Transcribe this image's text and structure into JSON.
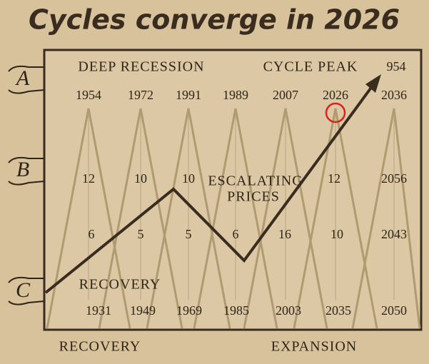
{
  "header": {
    "title": "Cycles converge in 2026"
  },
  "side_labels": [
    "A",
    "B",
    "C"
  ],
  "top_labels": {
    "left": "DEEP RECESSION",
    "right": "CYCLE PEAK",
    "corner": "954"
  },
  "rows": {
    "top_years": [
      "1954",
      "1972",
      "1991",
      "1989",
      "2007",
      "2026",
      "2036"
    ],
    "middle_upper": [
      "12",
      "10",
      "10",
      "12",
      "2056"
    ],
    "middle_label": [
      "ESCALATING",
      "PRICES"
    ],
    "middle_lower": [
      "6",
      "5",
      "5",
      "6",
      "16",
      "10",
      "2043"
    ],
    "bottom_years": [
      "1931",
      "1949",
      "1969",
      "1985",
      "2003",
      "2035",
      "2050"
    ]
  },
  "inner_label": "RECOVERY",
  "footer": {
    "left": "RECOVERY",
    "right": "EXPANSION"
  }
}
